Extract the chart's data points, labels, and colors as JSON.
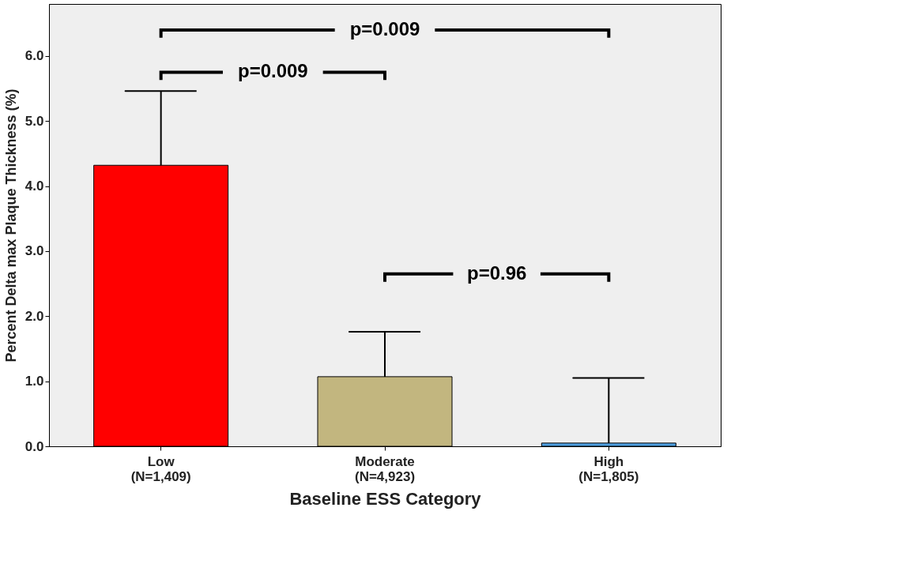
{
  "chart_data": {
    "type": "bar",
    "categories": [
      "Low\n(N=1,409)",
      "Moderate\n(N=4,923)",
      "High\n(N=1,805)"
    ],
    "values": [
      4.32,
      1.07,
      0.05
    ],
    "colors": [
      "#ff0000",
      "#c2b67f",
      "#4f9fe0"
    ],
    "errors": [
      [
        4.32,
        5.46
      ],
      [
        1.07,
        1.76
      ],
      [
        0.05,
        1.05
      ]
    ],
    "xlabel": "Baseline ESS Category",
    "ylabel": "Percent Delta max Plaque Thickness (%)",
    "ylim": [
      0,
      6.8
    ],
    "yticks": [
      {
        "value": 0,
        "label": "0.0"
      },
      {
        "value": 1,
        "label": "1.0"
      },
      {
        "value": 2,
        "label": "2.0"
      },
      {
        "value": 3,
        "label": "3.0"
      },
      {
        "value": 4,
        "label": "4.0"
      },
      {
        "value": 5,
        "label": "5.0"
      },
      {
        "value": 6,
        "label": "6.0"
      }
    ],
    "annotations": [
      "p=0.009",
      "p=0.009",
      "p=0.96"
    ],
    "grid": false
  }
}
